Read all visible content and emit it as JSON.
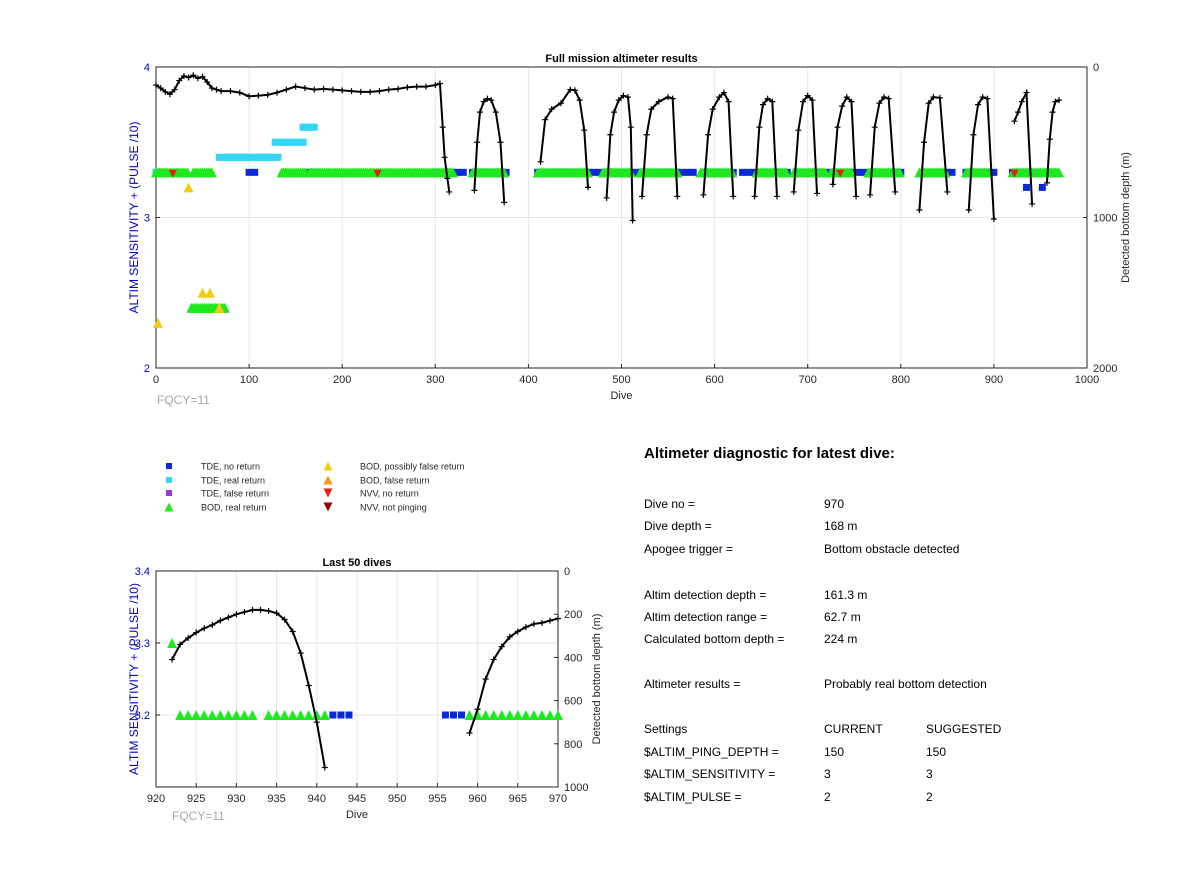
{
  "chart_data": [
    {
      "type": "scatter",
      "title": "Full mission altimeter results",
      "xlabel": "Dive",
      "ylabel_left": "ALTIM SENSITIVITY + (PULSE /10)",
      "ylabel_right": "Detected bottom depth (m)",
      "xlim": [
        0,
        1000
      ],
      "ylim_left": [
        2,
        4
      ],
      "ylim_right": [
        0,
        2000
      ],
      "right_axis_reversed": true,
      "xticks": [
        "0",
        "100",
        "200",
        "300",
        "400",
        "500",
        "600",
        "700",
        "800",
        "900",
        "1000"
      ],
      "yticks_left": [
        "2",
        "3",
        "4"
      ],
      "yticks_right": [
        "0",
        "1000",
        "2000"
      ],
      "note": "FQCY=11",
      "grid": true,
      "markers": [
        {
          "kind": "tde_no_return",
          "x_ranges": [
            [
              0,
              8
            ],
            [
              100,
              107
            ],
            [
              165,
              172
            ],
            [
              300,
              330
            ],
            [
              340,
              378
            ],
            [
              410,
              480
            ],
            [
              485,
              530
            ],
            [
              535,
              580
            ],
            [
              590,
              625
            ],
            [
              630,
              680
            ],
            [
              690,
              725
            ],
            [
              730,
              760
            ],
            [
              770,
              805
            ],
            [
              825,
              855
            ],
            [
              870,
              905
            ],
            [
              920,
              940
            ],
            [
              950,
              962
            ]
          ],
          "y": 3.3
        },
        {
          "kind": "tde_real_return",
          "x_ranges": [
            [
              0,
              10
            ],
            [
              68,
              132
            ],
            [
              128,
              160
            ],
            [
              158,
              170
            ]
          ],
          "y_values": [
            3.3,
            3.4,
            3.5,
            3.6
          ]
        },
        {
          "kind": "bod_real_return",
          "x_ranges": [
            [
              0,
              35
            ],
            [
              40,
              60
            ],
            [
              135,
              162
            ],
            [
              165,
              320
            ],
            [
              340,
              375
            ],
            [
              410,
              465
            ],
            [
              480,
              510
            ],
            [
              520,
              560
            ],
            [
              585,
              620
            ],
            [
              645,
              678
            ],
            [
              685,
              720
            ],
            [
              725,
              748
            ],
            [
              765,
              800
            ],
            [
              820,
              848
            ],
            [
              870,
              895
            ],
            [
              920,
              970
            ]
          ],
          "y": 3.3
        },
        {
          "kind": "bod_real_return_low",
          "x_ranges": [
            [
              38,
              75
            ]
          ],
          "y": 2.4
        },
        {
          "kind": "bod_possibly_false_return",
          "points": [
            [
              2,
              2.3
            ],
            [
              35,
              3.2
            ],
            [
              50,
              2.5
            ],
            [
              58,
              2.5
            ],
            [
              68,
              2.4
            ]
          ]
        },
        {
          "kind": "nvv_no_return",
          "points": [
            [
              18,
              3.29
            ],
            [
              238,
              3.29
            ],
            [
              735,
              3.29
            ],
            [
              922,
              3.29
            ]
          ]
        },
        {
          "kind": "tde_single",
          "points": [
            [
              935,
              3.2
            ],
            [
              952,
              3.2
            ]
          ]
        }
      ],
      "depth_series": [
        {
          "x": [
            0,
            5,
            10,
            15,
            20,
            25,
            30,
            35,
            40,
            45,
            50,
            55,
            60,
            65,
            70,
            80,
            90,
            100,
            110,
            120,
            130,
            140,
            150,
            160,
            170,
            180,
            190,
            200,
            210,
            220,
            230,
            240,
            250,
            260,
            270,
            280,
            290,
            300,
            305
          ],
          "y": [
            120,
            140,
            165,
            180,
            150,
            90,
            60,
            70,
            55,
            75,
            65,
            100,
            140,
            150,
            160,
            160,
            170,
            195,
            190,
            185,
            170,
            150,
            130,
            140,
            150,
            145,
            150,
            155,
            160,
            165,
            165,
            160,
            150,
            145,
            135,
            130,
            130,
            120,
            110
          ]
        },
        {
          "x": [
            305,
            308,
            310,
            313,
            315
          ],
          "y": [
            110,
            400,
            600,
            740,
            830
          ]
        },
        {
          "x": [
            342,
            345,
            348,
            352,
            356,
            360,
            365,
            370,
            374
          ],
          "y": [
            820,
            500,
            300,
            230,
            210,
            220,
            300,
            500,
            900
          ]
        },
        {
          "x": [
            413,
            418,
            425,
            435,
            445,
            450,
            455,
            460,
            464
          ],
          "y": [
            630,
            350,
            280,
            240,
            150,
            155,
            220,
            420,
            800
          ]
        },
        {
          "x": [
            484,
            488,
            492,
            497,
            502,
            507,
            510,
            512
          ],
          "y": [
            870,
            450,
            300,
            220,
            190,
            200,
            400,
            1020
          ]
        },
        {
          "x": [
            522,
            527,
            532,
            540,
            550,
            555,
            560
          ],
          "y": [
            860,
            450,
            280,
            230,
            200,
            210,
            860
          ]
        },
        {
          "x": [
            588,
            593,
            598,
            605,
            610,
            615,
            620
          ],
          "y": [
            850,
            450,
            280,
            200,
            170,
            230,
            860
          ]
        },
        {
          "x": [
            643,
            648,
            652,
            657,
            662,
            667
          ],
          "y": [
            860,
            400,
            250,
            210,
            230,
            860
          ]
        },
        {
          "x": [
            685,
            690,
            695,
            700,
            705,
            710
          ],
          "y": [
            830,
            420,
            230,
            190,
            220,
            840
          ]
        },
        {
          "x": [
            727,
            732,
            737,
            742,
            747,
            752
          ],
          "y": [
            780,
            400,
            260,
            200,
            230,
            860
          ]
        },
        {
          "x": [
            767,
            772,
            777,
            782,
            787,
            794
          ],
          "y": [
            850,
            400,
            240,
            200,
            210,
            830
          ]
        },
        {
          "x": [
            820,
            825,
            830,
            835,
            842,
            850
          ],
          "y": [
            950,
            500,
            240,
            200,
            205,
            830
          ]
        },
        {
          "x": [
            873,
            878,
            883,
            888,
            893,
            900
          ],
          "y": [
            950,
            450,
            250,
            200,
            210,
            1010
          ]
        },
        {
          "x": [
            922,
            926,
            930,
            935,
            941
          ],
          "y": [
            360,
            300,
            230,
            170,
            910
          ]
        },
        {
          "x": [
            957,
            960,
            963,
            966,
            970
          ],
          "y": [
            770,
            480,
            300,
            230,
            220
          ]
        }
      ]
    },
    {
      "type": "scatter",
      "title": "Last 50 dives",
      "xlabel": "Dive",
      "ylabel_left": "ALTIM SENSITIVITY + (PULSE /10)",
      "ylabel_right": "Detected bottom depth (m)",
      "xlim": [
        920,
        970
      ],
      "ylim_left": [
        3.1,
        3.4
      ],
      "ylim_right": [
        0,
        1000
      ],
      "right_axis_reversed": true,
      "xticks": [
        "920",
        "925",
        "930",
        "935",
        "940",
        "945",
        "950",
        "955",
        "960",
        "965",
        "970"
      ],
      "yticks_left": [
        "3.2",
        "3.3",
        "3.4"
      ],
      "yticks_right": [
        "0",
        "200",
        "400",
        "600",
        "800",
        "1000"
      ],
      "note": "FQCY=11",
      "grid": true,
      "bod_real_return": [
        [
          922,
          3.3
        ],
        [
          923,
          3.2
        ],
        [
          924,
          3.2
        ],
        [
          925,
          3.2
        ],
        [
          926,
          3.2
        ],
        [
          927,
          3.2
        ],
        [
          928,
          3.2
        ],
        [
          929,
          3.2
        ],
        [
          930,
          3.2
        ],
        [
          931,
          3.2
        ],
        [
          932,
          3.2
        ],
        [
          934,
          3.2
        ],
        [
          935,
          3.2
        ],
        [
          936,
          3.2
        ],
        [
          937,
          3.2
        ],
        [
          938,
          3.2
        ],
        [
          939,
          3.2
        ],
        [
          940,
          3.2
        ],
        [
          941,
          3.2
        ],
        [
          959,
          3.2
        ],
        [
          960,
          3.2
        ],
        [
          961,
          3.2
        ],
        [
          962,
          3.2
        ],
        [
          963,
          3.2
        ],
        [
          964,
          3.2
        ],
        [
          965,
          3.2
        ],
        [
          966,
          3.2
        ],
        [
          967,
          3.2
        ],
        [
          968,
          3.2
        ],
        [
          969,
          3.2
        ],
        [
          970,
          3.2
        ]
      ],
      "tde_no_return": [
        [
          942,
          3.2
        ],
        [
          943,
          3.2
        ],
        [
          944,
          3.2
        ],
        [
          956,
          3.2
        ],
        [
          957,
          3.2
        ],
        [
          958,
          3.2
        ]
      ],
      "depth_series": [
        {
          "x": [
            922,
            923,
            924,
            925,
            926,
            927,
            928,
            929,
            930,
            931,
            932,
            933,
            934,
            935,
            936,
            937,
            938,
            939,
            940,
            941
          ],
          "y": [
            410,
            340,
            310,
            285,
            265,
            250,
            230,
            215,
            200,
            190,
            180,
            180,
            185,
            195,
            225,
            280,
            380,
            530,
            700,
            910
          ]
        },
        {
          "x": [
            959,
            960,
            961,
            962,
            963,
            964,
            965,
            966,
            967,
            968,
            969,
            970
          ],
          "y": [
            750,
            640,
            500,
            410,
            350,
            305,
            280,
            260,
            245,
            240,
            230,
            220
          ]
        }
      ]
    }
  ],
  "legend": [
    {
      "label": "TDE, no return",
      "shape": "square",
      "color": "#0a2ad6"
    },
    {
      "label": "TDE, real return",
      "shape": "square",
      "color": "#35d6f5"
    },
    {
      "label": "TDE, false return",
      "shape": "square",
      "color": "#9a38d6"
    },
    {
      "label": "BOD, real return",
      "shape": "triangle-up",
      "color": "#1ee81e"
    },
    {
      "label": "BOD, possibly false return",
      "shape": "triangle-up",
      "color": "#f2cc12"
    },
    {
      "label": "BOD, false return",
      "shape": "triangle-up",
      "color": "#f29a12"
    },
    {
      "label": "NVV, no return",
      "shape": "triangle-down",
      "color": "#e81e12"
    },
    {
      "label": "NVV, not pinging",
      "shape": "triangle-down",
      "color": "#8c0a0a"
    }
  ],
  "diagnostic": {
    "title": "Altimeter diagnostic for latest dive:",
    "rows": [
      {
        "key": "Dive no =",
        "value": "970"
      },
      {
        "key": "Dive depth =",
        "value": "168 m"
      },
      {
        "key": "Apogee trigger =",
        "value": "Bottom obstacle detected"
      },
      {
        "key": "Altim detection depth =",
        "value": "161.3 m"
      },
      {
        "key": "Altim detection range =",
        "value": "62.7 m"
      },
      {
        "key": "Calculated bottom depth =",
        "value": "224 m"
      },
      {
        "key": "Altimeter results =",
        "value": "Probably real bottom detection"
      }
    ],
    "settings_header": {
      "key": "Settings",
      "current": "CURRENT",
      "suggested": "SUGGESTED"
    },
    "settings": [
      {
        "key": "$ALTIM_PING_DEPTH =",
        "current": "150",
        "suggested": "150"
      },
      {
        "key": "$ALTIM_SENSITIVITY =",
        "current": "3",
        "suggested": "3"
      },
      {
        "key": "$ALTIM_PULSE =",
        "current": "2",
        "suggested": "2"
      }
    ]
  },
  "colors": {
    "axis_left": "#0000cc",
    "tde_no_return": "#0a2ad6",
    "tde_real_return": "#35d6f5",
    "bod_real_return": "#1ee81e",
    "bod_possibly_false": "#f2cc12",
    "bod_false": "#f29a12",
    "nvv_no_return": "#e81e12",
    "depth_line": "#000000"
  }
}
